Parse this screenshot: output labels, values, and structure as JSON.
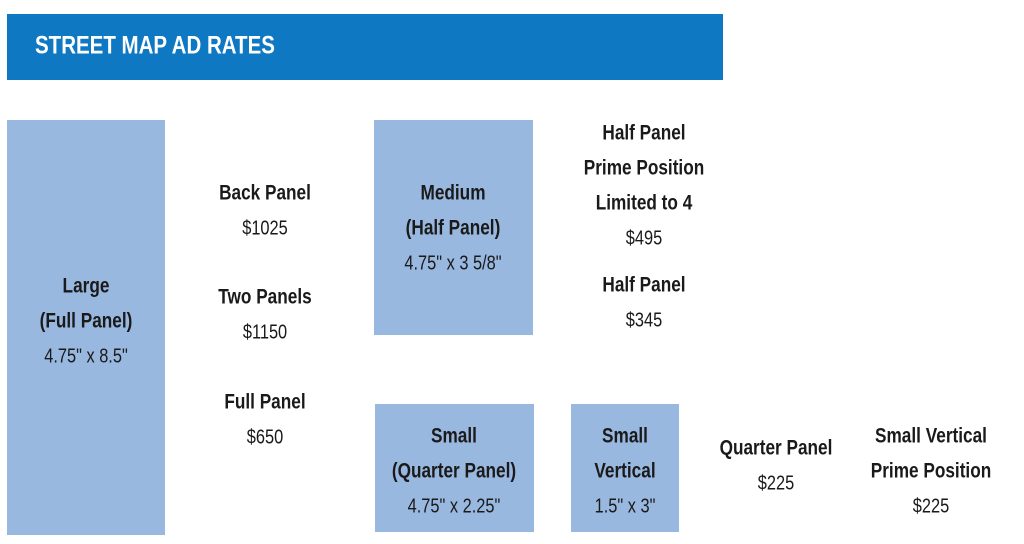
{
  "header": {
    "title": "STREET MAP AD RATES"
  },
  "panels": [
    {
      "lines": [
        "Large",
        "(Full Panel)",
        "4.75\" x 8.5\""
      ]
    },
    {
      "lines": [
        "Medium",
        "(Half Panel)",
        "4.75\" x 3 5/8\""
      ]
    },
    {
      "lines": [
        "Small",
        "(Quarter Panel)",
        "4.75\" x 2.25\""
      ]
    },
    {
      "lines": [
        "Small",
        "Vertical",
        "1.5\" x 3\""
      ]
    }
  ],
  "rates": [
    {
      "lines": [
        "Back Panel",
        "$1025"
      ]
    },
    {
      "lines": [
        "Two Panels",
        "$1150"
      ]
    },
    {
      "lines": [
        "Full Panel",
        "$650"
      ]
    },
    {
      "lines": [
        "Half Panel",
        "Prime Position",
        "Limited to 4",
        "$495"
      ]
    },
    {
      "lines": [
        "Half Panel",
        "$345"
      ]
    },
    {
      "lines": [
        "Quarter Panel",
        "$225"
      ]
    },
    {
      "lines": [
        "Small Vertical",
        "Prime Position",
        "$225"
      ]
    }
  ]
}
